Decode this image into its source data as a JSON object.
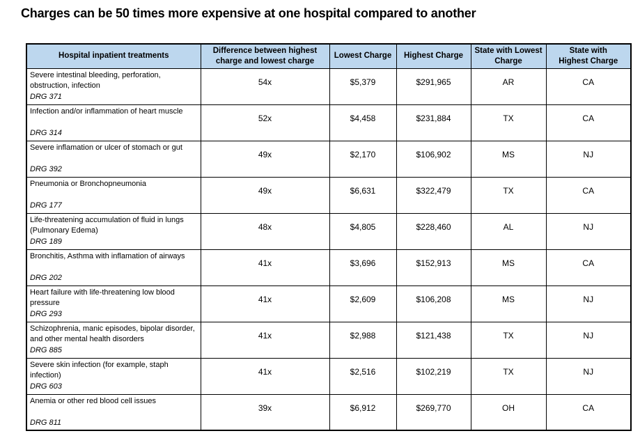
{
  "title": "Charges can be 50 times more expensive at one hospital compared to another",
  "colors": {
    "header_bg": "#BDD7EE",
    "border": "#000000",
    "text": "#000000"
  },
  "table": {
    "headers": [
      "Hospital inpatient treatments",
      "Difference between highest charge and lowest charge",
      "Lowest Charge",
      "Highest Charge",
      "State with Lowest Charge",
      "State with Highest Charge"
    ],
    "rows": [
      {
        "treatment": "Severe intestinal bleeding, perforation, obstruction, infection",
        "drg": "DRG 371",
        "difference": "54x",
        "lowest": "$5,379",
        "highest": "$291,965",
        "state_lowest": "AR",
        "state_highest": "CA"
      },
      {
        "treatment": "Infection and/or inflammation of heart muscle",
        "drg": "DRG 314",
        "difference": "52x",
        "lowest": "$4,458",
        "highest": "$231,884",
        "state_lowest": "TX",
        "state_highest": "CA"
      },
      {
        "treatment": "Severe inflamation or ulcer of stomach or gut",
        "drg": "DRG 392",
        "difference": "49x",
        "lowest": "$2,170",
        "highest": "$106,902",
        "state_lowest": "MS",
        "state_highest": "NJ"
      },
      {
        "treatment": "Pneumonia or Bronchopneumonia",
        "drg": "DRG 177",
        "difference": "49x",
        "lowest": "$6,631",
        "highest": "$322,479",
        "state_lowest": "TX",
        "state_highest": "CA"
      },
      {
        "treatment": "Life-threatening accumulation of fluid in lungs (Pulmonary Edema)",
        "drg": "DRG 189",
        "difference": "48x",
        "lowest": "$4,805",
        "highest": "$228,460",
        "state_lowest": "AL",
        "state_highest": "NJ"
      },
      {
        "treatment": "Bronchitis, Asthma with inflamation of airways",
        "drg": "DRG 202",
        "difference": "41x",
        "lowest": "$3,696",
        "highest": "$152,913",
        "state_lowest": "MS",
        "state_highest": "CA"
      },
      {
        "treatment": "Heart failure with life-threatening low blood pressure",
        "drg": "DRG 293",
        "difference": "41x",
        "lowest": "$2,609",
        "highest": "$106,208",
        "state_lowest": "MS",
        "state_highest": "NJ"
      },
      {
        "treatment": "Schizophrenia, manic episodes, bipolar disorder, and other mental health disorders",
        "drg": "DRG 885",
        "difference": "41x",
        "lowest": "$2,988",
        "highest": "$121,438",
        "state_lowest": "TX",
        "state_highest": "NJ"
      },
      {
        "treatment": "Severe skin infection (for example, staph infection)",
        "drg": "DRG 603",
        "difference": "41x",
        "lowest": "$2,516",
        "highest": "$102,219",
        "state_lowest": "TX",
        "state_highest": "NJ"
      },
      {
        "treatment": "Anemia or other red blood cell issues",
        "drg": "DRG 811",
        "difference": "39x",
        "lowest": "$6,912",
        "highest": "$269,770",
        "state_lowest": "OH",
        "state_highest": "CA"
      }
    ]
  }
}
